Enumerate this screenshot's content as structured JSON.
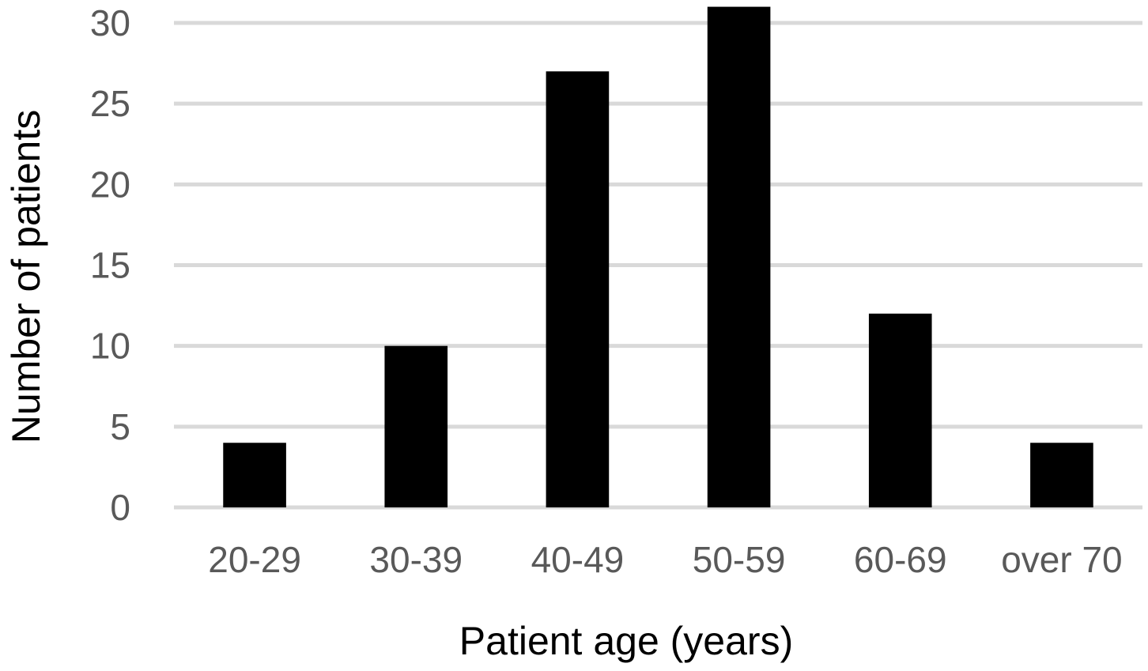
{
  "chart_data": {
    "type": "bar",
    "categories": [
      "20-29",
      "30-39",
      "40-49",
      "50-59",
      "60-69",
      "over 70"
    ],
    "values": [
      4,
      10,
      27,
      31,
      12,
      4
    ],
    "xlabel": "Patient age (years)",
    "ylabel": "Number of patients",
    "ylim": [
      0,
      30
    ],
    "yticks": [
      0,
      5,
      10,
      15,
      20,
      25,
      30
    ],
    "grid": true,
    "legend": "none",
    "colors": {
      "bar": "#000000",
      "grid": "#d9d9d9",
      "tick_text": "#595959",
      "title_text": "#000000"
    }
  }
}
